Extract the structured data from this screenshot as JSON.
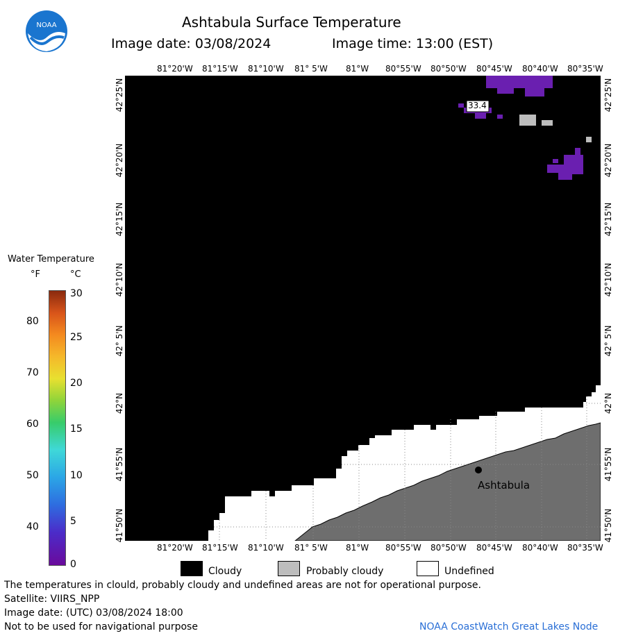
{
  "header": {
    "title": "Ashtabula Surface Temperature",
    "image_date": "Image date: 03/08/2024",
    "image_time": "Image time: 13:00 (EST)"
  },
  "map": {
    "top_lon_ticks": [
      "81°20'W",
      "81°15'W",
      "81°10'W",
      "81° 5'W",
      "81°W",
      "80°55'W",
      "80°50'W",
      "80°45'W",
      "80°40'W",
      "80°35'W"
    ],
    "bottom_lon_ticks": [
      "81°20'W",
      "81°15'W",
      "81°10'W",
      "81° 5'W",
      "81°W",
      "80°55'W",
      "80°50'W",
      "80°45'W",
      "80°40'W",
      "80°35'W"
    ],
    "lat_ticks": [
      "42°25'N",
      "42°20'N",
      "42°15'N",
      "42°10'N",
      "42° 5'N",
      "42°N",
      "41°55'N",
      "41°50'N"
    ],
    "temp_label": "33.4",
    "city_label": "Ashtabula",
    "colors": {
      "cloudy": "#000000",
      "probably_cloudy": "#bdbdbd",
      "undefined": "#ffffff",
      "land": "#6e6e6e",
      "cold_water": "#6a1fb0"
    }
  },
  "scale": {
    "title": "Water Temperature",
    "unit_f": "°F",
    "unit_c": "°C",
    "f_ticks": [
      "80",
      "70",
      "60",
      "50",
      "40"
    ],
    "c_ticks": [
      "30",
      "25",
      "20",
      "15",
      "10",
      "5",
      "0"
    ]
  },
  "legend": {
    "cloudy": "Cloudy",
    "probably_cloudy": "Probably cloudy",
    "undefined": "Undefined"
  },
  "footer": {
    "disclaimer": "The temperatures in clould, probably cloudy and undefined areas are not for operational purpose.",
    "satellite": "Satellite: VIIRS_NPP",
    "utc_date": "Image date: (UTC) 03/08/2024  18:00",
    "navigation": "Not to be used for navigational purpose",
    "credit": "NOAA CoastWatch Great Lakes Node"
  }
}
